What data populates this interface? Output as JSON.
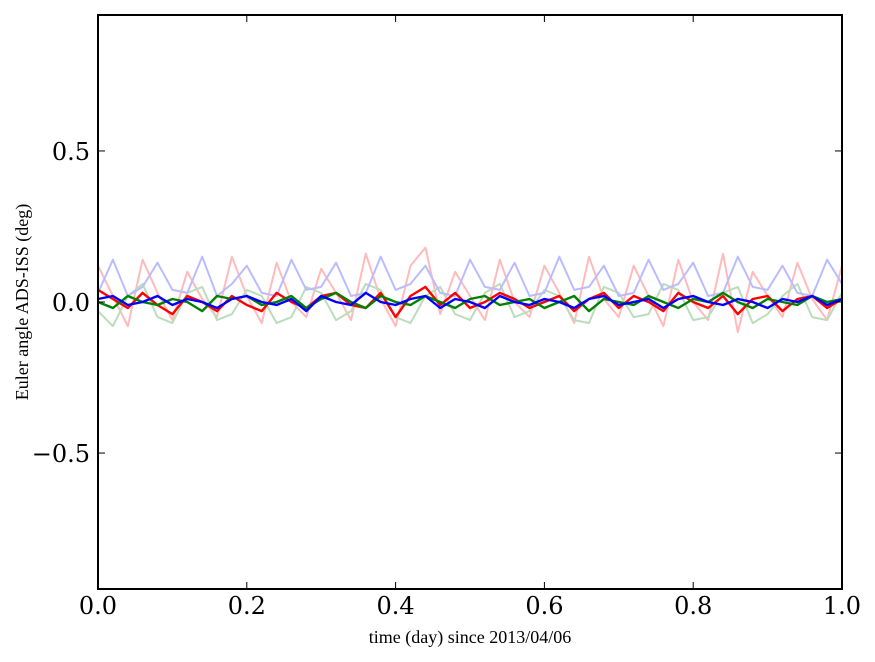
{
  "chart_data": {
    "type": "line",
    "title": "",
    "xlabel": "time (day) since 2013/04/06",
    "ylabel": "Euler angle ADS-ISS (deg)",
    "xlim": [
      0.0,
      1.0
    ],
    "ylim": [
      -0.95,
      0.95
    ],
    "x_ticks": [
      {
        "value": 0.0,
        "label": "0.0"
      },
      {
        "value": 0.2,
        "label": "0.2"
      },
      {
        "value": 0.4,
        "label": "0.4"
      },
      {
        "value": 0.6,
        "label": "0.6"
      },
      {
        "value": 0.8,
        "label": "0.8"
      },
      {
        "value": 1.0,
        "label": "1.0"
      }
    ],
    "y_ticks": [
      {
        "value": -0.5,
        "label": "−0.5"
      },
      {
        "value": 0.0,
        "label": "0.0"
      },
      {
        "value": 0.5,
        "label": "0.5"
      }
    ],
    "grid": false,
    "legend": "none",
    "x": [
      0.0,
      0.02,
      0.04,
      0.06,
      0.08,
      0.1,
      0.12,
      0.14,
      0.16,
      0.18,
      0.2,
      0.22,
      0.24,
      0.26,
      0.28,
      0.3,
      0.32,
      0.34,
      0.36,
      0.38,
      0.4,
      0.42,
      0.44,
      0.46,
      0.48,
      0.5,
      0.52,
      0.54,
      0.56,
      0.58,
      0.6,
      0.62,
      0.64,
      0.66,
      0.68,
      0.7,
      0.72,
      0.74,
      0.76,
      0.78,
      0.8,
      0.82,
      0.84,
      0.86,
      0.88,
      0.9,
      0.92,
      0.94,
      0.96,
      0.98,
      1.0
    ],
    "series": [
      {
        "color": "#ffbbbb",
        "opacity": 1.0,
        "width": 2,
        "values": [
          0.12,
          0.02,
          -0.08,
          0.14,
          0.03,
          -0.06,
          0.1,
          0.01,
          -0.05,
          0.15,
          0.02,
          -0.07,
          0.13,
          0.0,
          -0.05,
          0.11,
          0.03,
          -0.06,
          0.16,
          0.01,
          -0.08,
          0.12,
          0.18,
          -0.04,
          0.1,
          0.02,
          -0.06,
          0.14,
          0.0,
          -0.05,
          0.12,
          0.03,
          -0.07,
          0.15,
          0.01,
          -0.05,
          0.12,
          0.02,
          -0.08,
          0.14,
          0.0,
          -0.06,
          0.16,
          -0.1,
          0.1,
          0.02,
          -0.05,
          0.13,
          0.01,
          -0.06,
          0.12
        ]
      },
      {
        "color": "#bbddbb",
        "opacity": 1.0,
        "width": 2,
        "values": [
          -0.03,
          -0.08,
          0.02,
          0.06,
          -0.05,
          -0.07,
          0.03,
          0.05,
          -0.06,
          -0.04,
          0.04,
          0.02,
          -0.07,
          -0.05,
          0.05,
          0.03,
          -0.06,
          -0.03,
          0.06,
          0.04,
          -0.05,
          -0.07,
          0.02,
          0.05,
          -0.04,
          -0.06,
          0.03,
          0.06,
          -0.05,
          -0.03,
          0.04,
          0.02,
          -0.06,
          -0.07,
          0.05,
          0.03,
          -0.05,
          -0.04,
          0.06,
          0.04,
          -0.06,
          -0.05,
          0.03,
          0.05,
          -0.07,
          -0.04,
          0.02,
          0.06,
          -0.05,
          -0.06,
          0.03
        ]
      },
      {
        "color": "#bbbbff",
        "opacity": 1.0,
        "width": 2,
        "values": [
          0.03,
          0.14,
          0.02,
          0.05,
          0.13,
          0.04,
          0.03,
          0.15,
          0.02,
          0.06,
          0.12,
          0.03,
          0.02,
          0.14,
          0.04,
          0.05,
          0.13,
          0.02,
          0.03,
          0.15,
          0.04,
          0.06,
          0.12,
          0.03,
          0.02,
          0.14,
          0.05,
          0.04,
          0.13,
          0.02,
          0.03,
          0.15,
          0.04,
          0.05,
          0.12,
          0.02,
          0.03,
          0.14,
          0.04,
          0.06,
          0.13,
          0.02,
          0.03,
          0.15,
          0.05,
          0.04,
          0.12,
          0.03,
          0.02,
          0.14,
          0.06
        ]
      },
      {
        "color": "#ff0000",
        "opacity": 1.0,
        "width": 2.4,
        "values": [
          0.04,
          0.01,
          -0.02,
          0.03,
          -0.01,
          -0.04,
          0.02,
          0.0,
          -0.03,
          0.02,
          -0.01,
          -0.03,
          0.03,
          0.0,
          -0.02,
          0.02,
          0.03,
          -0.01,
          -0.02,
          0.03,
          -0.05,
          0.02,
          0.05,
          -0.01,
          0.03,
          -0.02,
          0.0,
          0.03,
          0.01,
          -0.02,
          0.0,
          0.02,
          -0.03,
          0.01,
          0.03,
          -0.02,
          0.02,
          0.0,
          -0.03,
          0.03,
          0.0,
          -0.02,
          0.02,
          -0.04,
          0.01,
          0.02,
          -0.03,
          0.01,
          0.02,
          -0.02,
          0.01
        ]
      },
      {
        "color": "#008000",
        "opacity": 1.0,
        "width": 2.4,
        "values": [
          0.0,
          -0.02,
          0.02,
          0.0,
          -0.01,
          0.01,
          0.0,
          -0.03,
          0.02,
          0.01,
          0.02,
          -0.01,
          0.0,
          0.02,
          -0.02,
          0.01,
          0.03,
          0.0,
          -0.02,
          0.02,
          0.0,
          -0.01,
          0.02,
          0.0,
          -0.02,
          0.01,
          0.02,
          -0.01,
          0.0,
          0.01,
          -0.02,
          0.0,
          0.02,
          -0.03,
          0.01,
          0.0,
          -0.01,
          0.02,
          0.0,
          -0.02,
          0.01,
          0.0,
          0.03,
          0.0,
          -0.02,
          0.01,
          0.0,
          -0.01,
          0.02,
          0.0,
          0.01
        ]
      },
      {
        "color": "#0000ff",
        "opacity": 1.0,
        "width": 2.4,
        "values": [
          0.01,
          0.02,
          -0.01,
          0.0,
          0.02,
          -0.01,
          0.01,
          0.0,
          -0.02,
          0.01,
          0.02,
          0.0,
          -0.01,
          0.01,
          -0.03,
          0.02,
          0.0,
          -0.01,
          0.03,
          0.0,
          -0.01,
          0.01,
          0.02,
          -0.02,
          0.01,
          0.0,
          -0.02,
          0.02,
          0.0,
          -0.01,
          0.01,
          0.0,
          -0.02,
          0.01,
          0.02,
          -0.01,
          0.0,
          0.01,
          -0.02,
          0.01,
          0.02,
          0.0,
          -0.01,
          0.01,
          0.0,
          -0.02,
          0.01,
          0.0,
          0.02,
          -0.01,
          0.01
        ]
      }
    ]
  }
}
